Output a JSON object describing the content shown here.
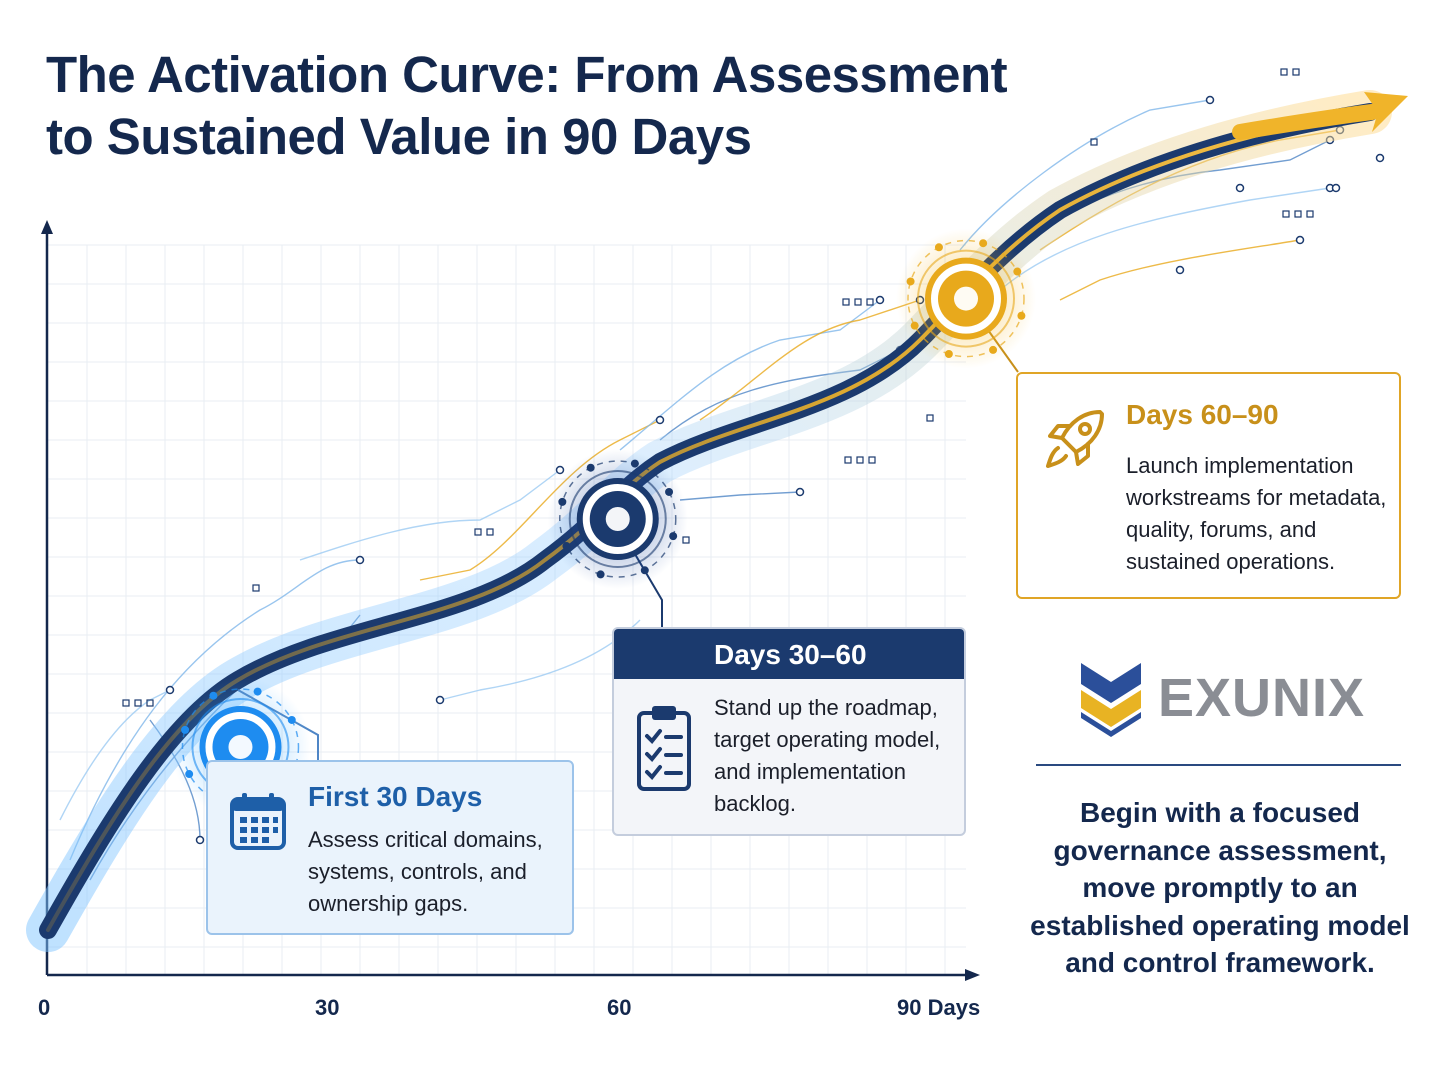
{
  "title": {
    "line1": "The Activation Curve: From Assessment",
    "line2": "to Sustained Value in 90 Days"
  },
  "axis": {
    "ticks": [
      {
        "label": "0",
        "value": 0
      },
      {
        "label": "30",
        "value": 30
      },
      {
        "label": "60",
        "value": 60
      },
      {
        "label": "90 Days",
        "value": 90
      }
    ]
  },
  "milestones": [
    {
      "day": 20,
      "level": 0.3,
      "color": "#1e8cf0"
    },
    {
      "day": 59,
      "level": 0.6,
      "color": "#1b3a6e"
    },
    {
      "day": 95,
      "level": 0.89,
      "color": "#e8a91c"
    }
  ],
  "cards": {
    "first": {
      "title": "First 30 Days",
      "text": [
        "Assess critical domains,",
        "systems, controls, and",
        "ownership gaps."
      ],
      "icon": "calendar-icon",
      "accent": "#1e5fa8"
    },
    "second": {
      "title": "Days 30–60",
      "text": [
        "Stand up the roadmap,",
        "target operating model,",
        "and implementation",
        "backlog."
      ],
      "icon": "clipboard-checklist-icon",
      "accent": "#1b3a6e"
    },
    "third": {
      "title": "Days 60–90",
      "text": [
        "Launch implementation",
        "workstreams for metadata,",
        "quality, forums, and",
        "sustained operations."
      ],
      "icon": "rocket-icon",
      "accent": "#c8901a"
    }
  },
  "brand": {
    "name": "EXUNIX",
    "icon": "chevron-logo-icon",
    "colors": {
      "navy": "#2b4f9a",
      "gold": "#e8b323",
      "gray": "#8a8d94"
    }
  },
  "tagline": [
    "Begin with a focused",
    "governance assessment,",
    "move promptly to an",
    "established operating model",
    "and control framework."
  ]
}
